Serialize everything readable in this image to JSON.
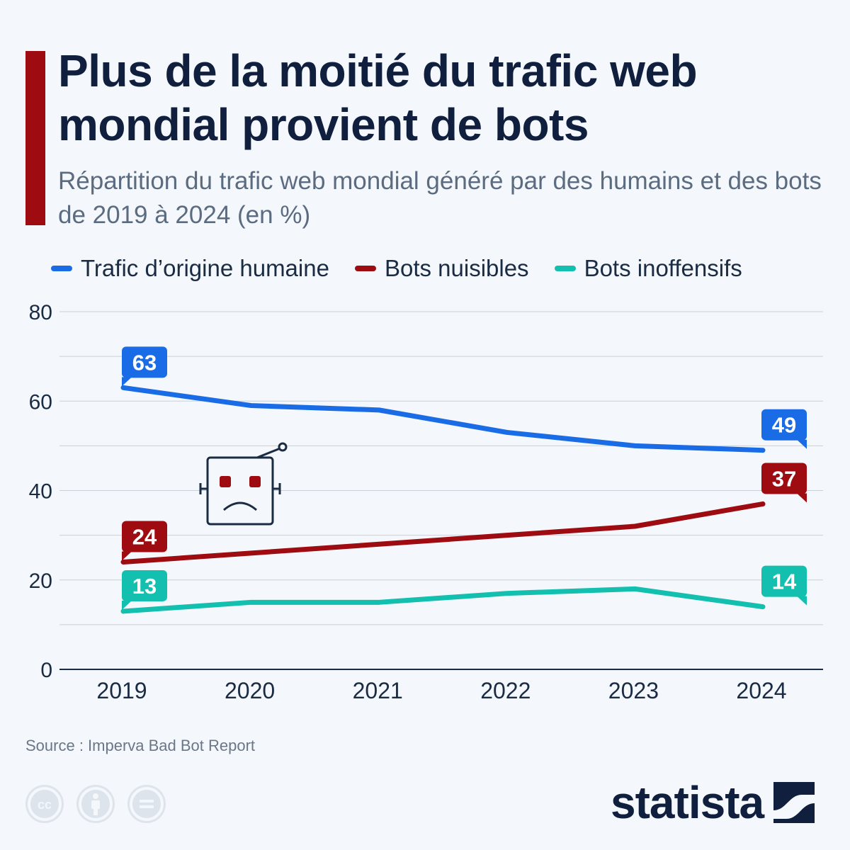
{
  "header": {
    "title": "Plus de la moitié du trafic web mondial provient de bots",
    "subtitle": "Répartition du trafic web mondial généré par des humains et des bots de 2019 à 2024 (en %)"
  },
  "legend": [
    {
      "label": "Trafic d’origine humaine",
      "color": "#1a6ce6"
    },
    {
      "label": "Bots nuisibles",
      "color": "#9e0c12"
    },
    {
      "label": "Bots inoffensifs",
      "color": "#13bfae"
    }
  ],
  "chart_data": {
    "type": "line",
    "categories": [
      "2019",
      "2020",
      "2021",
      "2022",
      "2023",
      "2024"
    ],
    "ylim": [
      0,
      80
    ],
    "yticks": [
      0,
      20,
      40,
      60,
      80
    ],
    "grid": true,
    "legend_position": "top",
    "xlabel": "",
    "ylabel": "",
    "series": [
      {
        "name": "Trafic d’origine humaine",
        "color": "#1a6ce6",
        "values": [
          63,
          59,
          58,
          53,
          50,
          49
        ],
        "labels": [
          "63",
          "49"
        ]
      },
      {
        "name": "Bots nuisibles",
        "color": "#9e0c12",
        "values": [
          24,
          26,
          28,
          30,
          32,
          37
        ],
        "labels": [
          "24",
          "37"
        ]
      },
      {
        "name": "Bots inoffensifs",
        "color": "#13bfae",
        "values": [
          13,
          15,
          15,
          17,
          18,
          14
        ],
        "labels": [
          "13",
          "14"
        ]
      }
    ]
  },
  "footer": {
    "source": "Source : Imperva Bad Bot Report",
    "brand": "statista",
    "license_icons": [
      "creative-commons-icon",
      "attribution-icon",
      "no-derivatives-icon"
    ]
  }
}
